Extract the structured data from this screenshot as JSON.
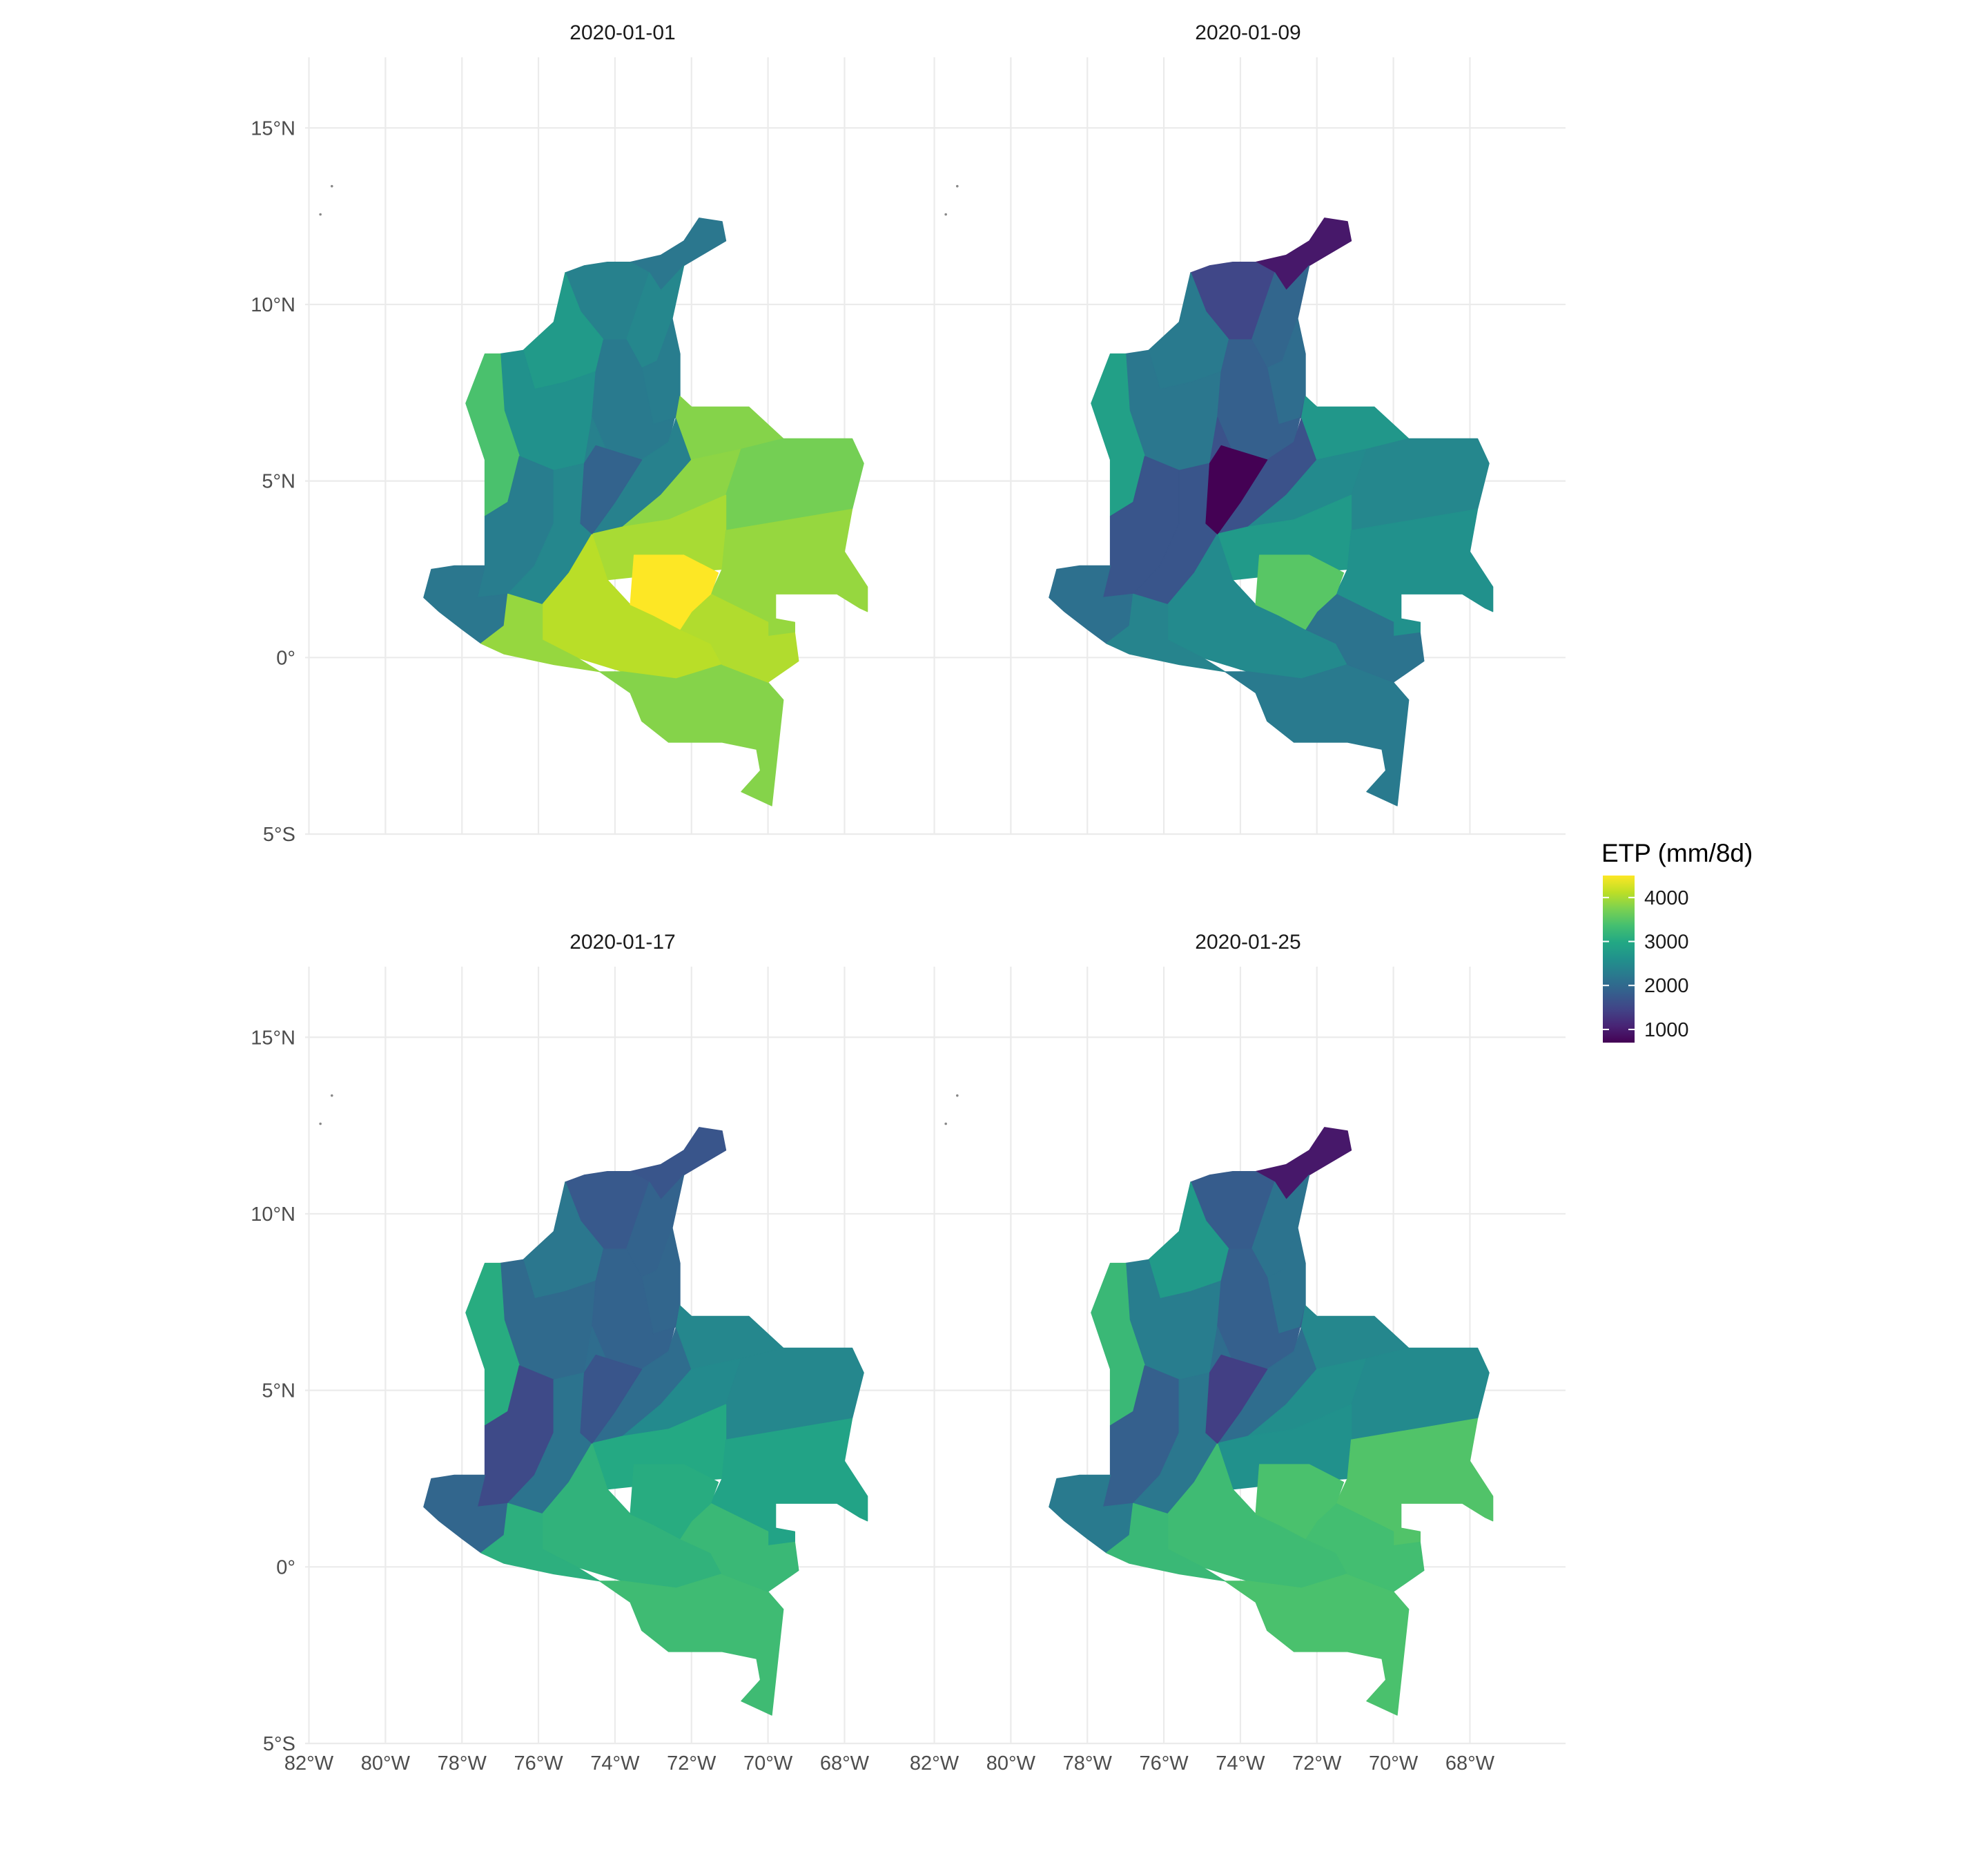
{
  "chart_data": {
    "type": "choropleth-map",
    "title": "",
    "legend": {
      "title": "ETP (mm/8d)",
      "ticks": [
        4000,
        3000,
        2000,
        1000
      ],
      "tick_labels": [
        "4000",
        "3000",
        "2000",
        "1000"
      ],
      "range": [
        700,
        4500
      ],
      "colormap": "viridis",
      "placement": "right"
    },
    "x_axis": {
      "ticks": [
        -82,
        -80,
        -78,
        -76,
        -74,
        -72,
        -70,
        -68
      ],
      "tick_labels": [
        "82°W",
        "80°W",
        "78°W",
        "76°W",
        "74°W",
        "72°W",
        "70°W",
        "68°W"
      ],
      "range": [
        -82.1,
        -65.5
      ]
    },
    "y_axis": {
      "ticks": [
        15,
        10,
        5,
        0,
        -5
      ],
      "tick_labels": [
        "15°N",
        "10°N",
        "5°N",
        "0°",
        "5°S"
      ],
      "range": [
        -5,
        17
      ]
    },
    "grid": true,
    "panels": [
      {
        "date": "2020-01-01",
        "values": {
          "guajira": 2200,
          "magdalena": 2350,
          "cesar": 2450,
          "cordoba": 2750,
          "norte_santander": 2300,
          "antioquia": 2600,
          "choco": 3400,
          "santander": 2250,
          "magdalena_valley": 1900,
          "cauca_valley": 2300,
          "pacific_south": 2200,
          "tolima": 2450,
          "cundinamarca": 2350,
          "arauca": 3800,
          "casanare": 3850,
          "vichada": 3700,
          "meta": 4000,
          "guaviare": 4500,
          "caqueta": 4100,
          "putumayo": 3900,
          "amazonas": 3800,
          "guainia": 3900,
          "vaupes": 4050
        }
      },
      {
        "date": "2020-01-09",
        "values": {
          "guajira": 950,
          "magdalena": 1500,
          "cesar": 1950,
          "cordoba": 2250,
          "norte_santander": 2050,
          "antioquia": 2200,
          "choco": 2850,
          "santander": 1850,
          "magdalena_valley": 700,
          "cauca_valley": 1700,
          "pacific_south": 2100,
          "tolima": 1700,
          "cundinamarca": 1650,
          "arauca": 2700,
          "casanare": 2500,
          "vichada": 2450,
          "meta": 2750,
          "guaviare": 3500,
          "caqueta": 2500,
          "putumayo": 2400,
          "amazonas": 2250,
          "guainia": 2600,
          "vaupes": 2150
        }
      },
      {
        "date": "2020-01-17",
        "values": {
          "guajira": 1700,
          "magdalena": 1750,
          "cesar": 1900,
          "cordoba": 2200,
          "norte_santander": 1950,
          "antioquia": 2000,
          "choco": 3050,
          "santander": 1900,
          "magdalena_valley": 1700,
          "cauca_valley": 1550,
          "pacific_south": 1950,
          "tolima": 2150,
          "cundinamarca": 2050,
          "arauca": 2450,
          "casanare": 2500,
          "vichada": 2450,
          "meta": 3000,
          "guaviare": 3050,
          "caqueta": 3150,
          "putumayo": 3100,
          "amazonas": 3300,
          "guainia": 2900,
          "vaupes": 3250
        }
      },
      {
        "date": "2020-01-25",
        "values": {
          "guajira": 950,
          "magdalena": 1800,
          "cesar": 2150,
          "cordoba": 2750,
          "norte_santander": 2150,
          "antioquia": 2300,
          "choco": 3250,
          "santander": 1850,
          "magdalena_valley": 1400,
          "cauca_valley": 1850,
          "pacific_south": 2250,
          "tolima": 2200,
          "cundinamarca": 2050,
          "arauca": 2450,
          "casanare": 2550,
          "vichada": 2500,
          "meta": 2600,
          "guaviare": 3400,
          "caqueta": 3300,
          "putumayo": 3250,
          "amazonas": 3400,
          "guainia": 3450,
          "vaupes": 3350
        }
      }
    ]
  }
}
